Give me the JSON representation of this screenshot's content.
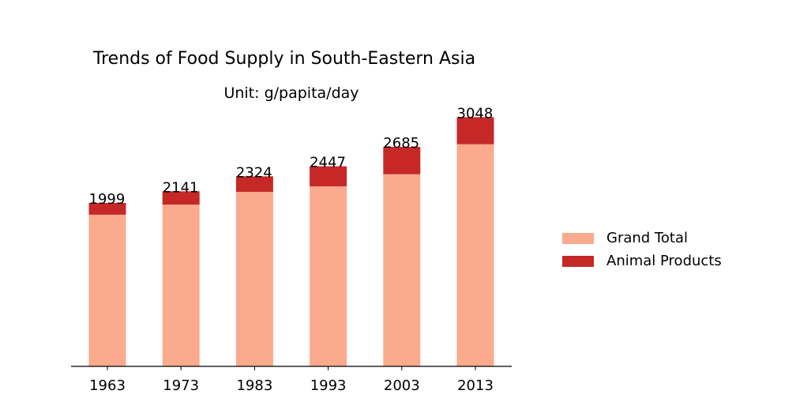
{
  "chart_data": {
    "type": "bar",
    "stacked": true,
    "title": "Trends of Food Supply in South-Eastern Asia",
    "subtitle": "Unit: g/papita/day",
    "categories": [
      "1963",
      "1973",
      "1983",
      "1993",
      "2003",
      "2013"
    ],
    "series": [
      {
        "name": "Grand Total",
        "color": "#fcaa8e",
        "values": [
          1855,
          1978,
          2134,
          2202,
          2350,
          2717
        ]
      },
      {
        "name": "Animal Products",
        "color": "#c62828",
        "values": [
          144,
          163,
          190,
          245,
          335,
          331
        ]
      }
    ],
    "totals": [
      1999,
      2141,
      2324,
      2447,
      2685,
      3048
    ],
    "ylim": [
      0,
      3100
    ],
    "grid": false,
    "legend_position": "right"
  }
}
